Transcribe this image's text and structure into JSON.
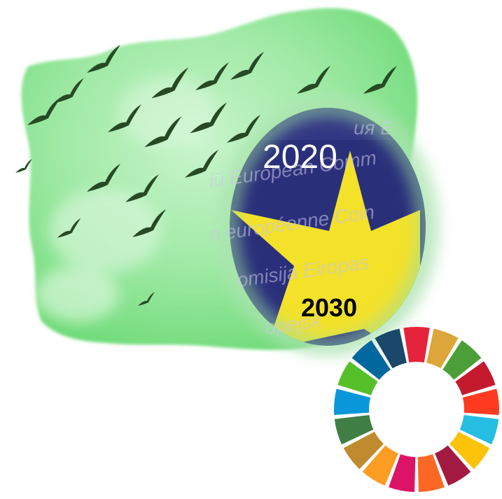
{
  "image": {
    "year_start": "2020",
    "year_end": "2030",
    "watermark_lines": [
      "ия Е",
      "ій European Comm",
      "n européenne Coin",
      "omisija Eiropas",
      "opejsk"
    ]
  },
  "colors": {
    "green_map": "#9fe9a5",
    "green_light": "#d7f7d9",
    "eu_blue": "#2a2f7a",
    "eu_yellow": "#f3e12a",
    "bird": "#274a24",
    "text_white": "#ffffff",
    "text_black": "#000000"
  },
  "sdg_wheel": {
    "segments": [
      "#e5243b",
      "#dda63a",
      "#4c9f38",
      "#c5192d",
      "#ff3a21",
      "#26bde2",
      "#fcc30b",
      "#a21942",
      "#fd6925",
      "#dd1367",
      "#fd9d24",
      "#bf8b2e",
      "#3f7e44",
      "#0a97d9",
      "#56c02b",
      "#00689d",
      "#19486a"
    ]
  }
}
